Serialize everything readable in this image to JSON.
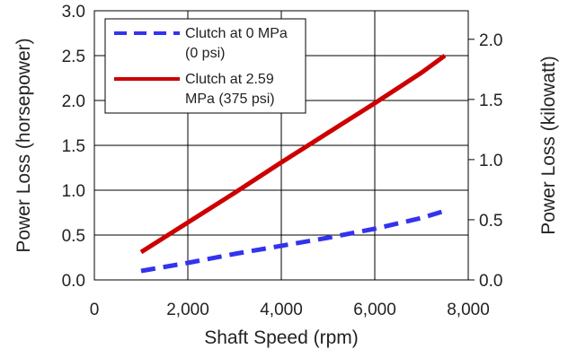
{
  "chart_data": {
    "type": "line",
    "xlabel": "Shaft Speed (rpm)",
    "ylabel": "Power Loss (horsepower)",
    "y2label": "Power Loss (kilowatt)",
    "xlim": [
      0,
      8000
    ],
    "ylim": [
      0,
      3.0
    ],
    "y2lim": [
      0,
      2.237
    ],
    "x_ticks": [
      "0",
      "2,000",
      "4,000",
      "6,000",
      "8,000"
    ],
    "x_tick_values": [
      0,
      2000,
      4000,
      6000,
      8000
    ],
    "y_ticks": [
      "0.0",
      "0.5",
      "1.0",
      "1.5",
      "2.0",
      "2.5",
      "3.0"
    ],
    "y_tick_values": [
      0,
      0.5,
      1.0,
      1.5,
      2.0,
      2.5,
      3.0
    ],
    "y2_ticks": [
      "0.0",
      "0.5",
      "1.0",
      "1.5",
      "2.0"
    ],
    "y2_tick_values": [
      0,
      0.5,
      1.0,
      1.5,
      2.0
    ],
    "grid": true,
    "legend_position": "top-left",
    "series": [
      {
        "name_lines": [
          "Clutch at 0 MPa",
          "(0 psi)"
        ],
        "color": "#3333ee",
        "style": "dashed",
        "x": [
          1000,
          2000,
          3000,
          4000,
          5000,
          6000,
          7000,
          7500
        ],
        "y": [
          0.1,
          0.19,
          0.29,
          0.38,
          0.47,
          0.57,
          0.69,
          0.77
        ]
      },
      {
        "name_lines": [
          "Clutch at 2.59",
          "MPa (375 psi)"
        ],
        "color": "#cc0000",
        "style": "solid",
        "x": [
          1000,
          2000,
          3000,
          4000,
          5000,
          6000,
          7000,
          7500
        ],
        "y": [
          0.31,
          0.64,
          0.97,
          1.31,
          1.64,
          1.97,
          2.31,
          2.5
        ]
      }
    ]
  }
}
